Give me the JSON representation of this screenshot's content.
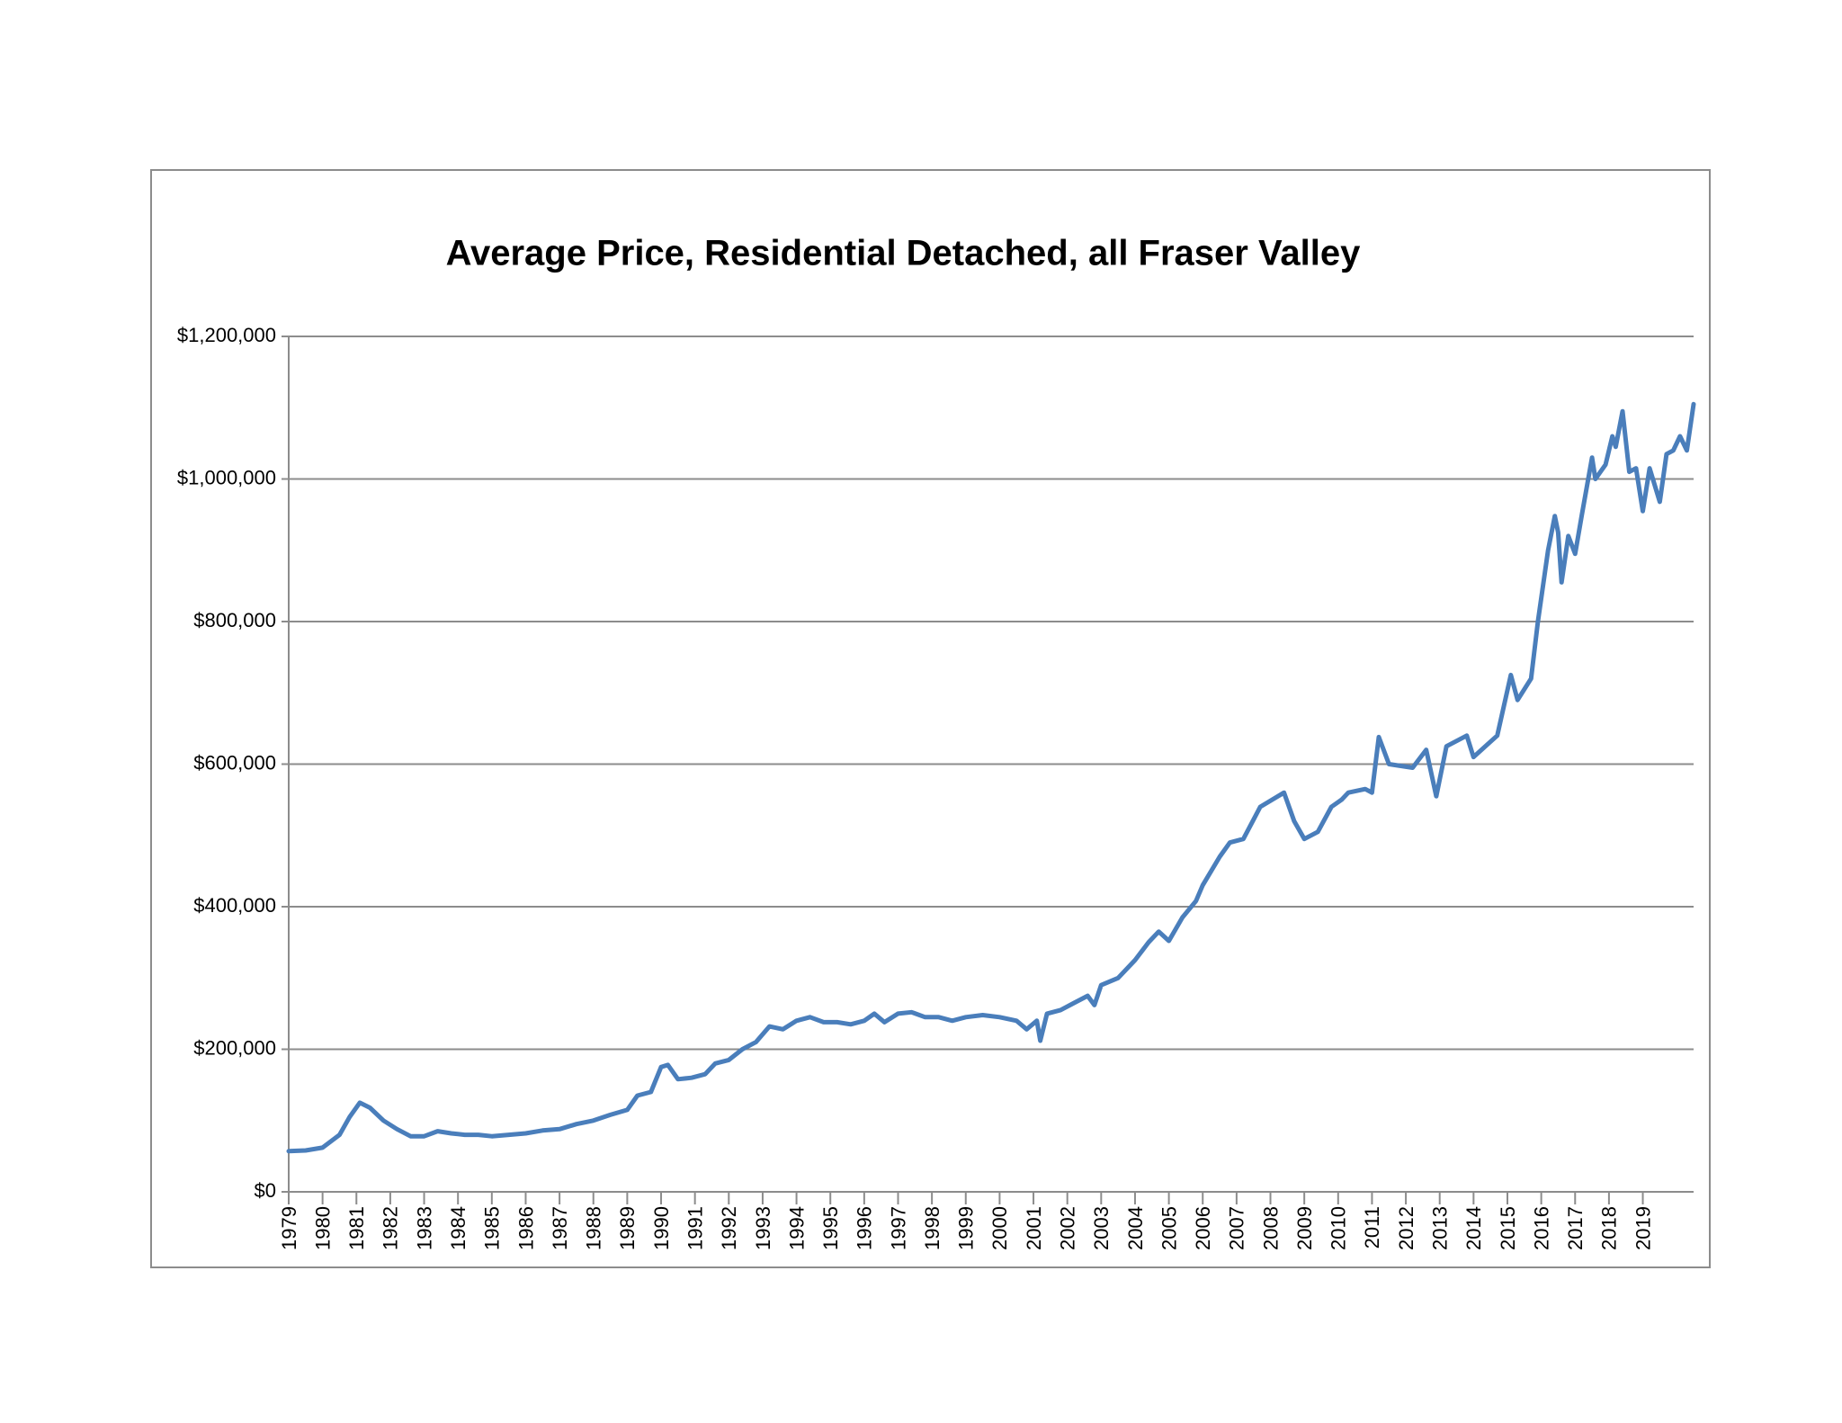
{
  "chart_data": {
    "type": "line",
    "title": "Average Price, Residential Detached, all Fraser Valley",
    "xlim": [
      1979,
      2020.5
    ],
    "xticks": [
      1979,
      1980,
      1981,
      1982,
      1983,
      1984,
      1985,
      1986,
      1987,
      1988,
      1989,
      1990,
      1991,
      1992,
      1993,
      1994,
      1995,
      1996,
      1997,
      1998,
      1999,
      2000,
      2001,
      2002,
      2003,
      2004,
      2005,
      2006,
      2007,
      2008,
      2009,
      2010,
      2011,
      2012,
      2013,
      2014,
      2015,
      2016,
      2017,
      2018,
      2019
    ],
    "ylim": [
      0,
      1200000
    ],
    "yticks": [
      {
        "value": 0,
        "label": "$0"
      },
      {
        "value": 200000,
        "label": "$200,000"
      },
      {
        "value": 400000,
        "label": "$400,000"
      },
      {
        "value": 600000,
        "label": "$600,000"
      },
      {
        "value": 800000,
        "label": "$800,000"
      },
      {
        "value": 1000000,
        "label": "$1,000,000"
      },
      {
        "value": 1200000,
        "label": "$1,200,000"
      }
    ],
    "grid": true,
    "series": [
      {
        "color": "#4a7ebb",
        "x": [
          1979.0,
          1979.5,
          1980.0,
          1980.5,
          1980.8,
          1981.1,
          1981.4,
          1981.8,
          1982.2,
          1982.6,
          1983.0,
          1983.4,
          1983.8,
          1984.2,
          1984.6,
          1985.0,
          1985.5,
          1986.0,
          1986.5,
          1987.0,
          1987.5,
          1988.0,
          1988.5,
          1989.0,
          1989.3,
          1989.7,
          1990.0,
          1990.2,
          1990.5,
          1990.9,
          1991.3,
          1991.6,
          1992.0,
          1992.4,
          1992.8,
          1993.2,
          1993.6,
          1994.0,
          1994.4,
          1994.8,
          1995.2,
          1995.6,
          1996.0,
          1996.3,
          1996.6,
          1997.0,
          1997.4,
          1997.8,
          1998.2,
          1998.6,
          1999.0,
          1999.5,
          2000.0,
          2000.5,
          2000.8,
          2001.1,
          2001.2,
          2001.4,
          2001.8,
          2002.2,
          2002.6,
          2002.8,
          2003.0,
          2003.5,
          2004.0,
          2004.4,
          2004.7,
          2005.0,
          2005.4,
          2005.8,
          2006.0,
          2006.5,
          2006.8,
          2007.2,
          2007.7,
          2008.4,
          2008.7,
          2009.0,
          2009.4,
          2009.8,
          2010.1,
          2010.3,
          2010.8,
          2011.0,
          2011.2,
          2011.5,
          2012.2,
          2012.6,
          2012.9,
          2013.2,
          2013.8,
          2014.0,
          2014.7,
          2015.1,
          2015.3,
          2015.7,
          2015.9,
          2016.2,
          2016.4,
          2016.5,
          2016.6,
          2016.8,
          2017.0,
          2017.2,
          2017.5,
          2017.6,
          2017.9,
          2018.1,
          2018.2,
          2018.4,
          2018.6,
          2018.8,
          2019.0,
          2019.2,
          2019.5,
          2019.7,
          2019.9,
          2020.1,
          2020.3,
          2020.5
        ],
        "values": [
          57000,
          58000,
          62000,
          80000,
          105000,
          125000,
          118000,
          100000,
          88000,
          78000,
          78000,
          85000,
          82000,
          80000,
          80000,
          78000,
          80000,
          82000,
          86000,
          88000,
          95000,
          100000,
          108000,
          115000,
          135000,
          140000,
          175000,
          178000,
          158000,
          160000,
          165000,
          180000,
          185000,
          200000,
          210000,
          232000,
          228000,
          240000,
          245000,
          238000,
          238000,
          235000,
          240000,
          250000,
          238000,
          250000,
          252000,
          245000,
          245000,
          240000,
          245000,
          248000,
          245000,
          240000,
          228000,
          240000,
          212000,
          250000,
          255000,
          265000,
          275000,
          262000,
          290000,
          300000,
          325000,
          350000,
          365000,
          352000,
          385000,
          408000,
          430000,
          470000,
          490000,
          495000,
          540000,
          560000,
          520000,
          495000,
          505000,
          540000,
          550000,
          560000,
          565000,
          560000,
          638000,
          600000,
          595000,
          620000,
          555000,
          625000,
          640000,
          610000,
          640000,
          725000,
          690000,
          720000,
          800000,
          900000,
          948000,
          925000,
          855000,
          920000,
          895000,
          950000,
          1030000,
          1000000,
          1020000,
          1060000,
          1045000,
          1095000,
          1010000,
          1015000,
          955000,
          1015000,
          968000,
          1035000,
          1040000,
          1060000,
          1040000,
          1105000
        ]
      }
    ]
  }
}
